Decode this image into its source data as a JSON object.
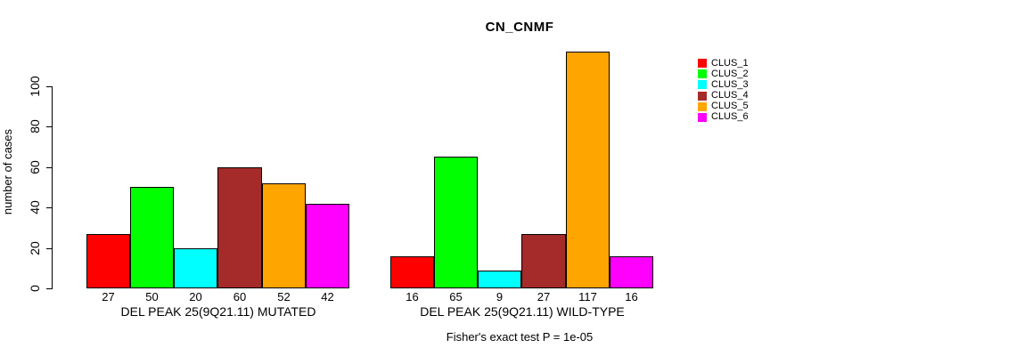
{
  "title": "CN_CNMF",
  "caption": "Fisher's exact test P = 1e-05",
  "chart_data": {
    "type": "bar",
    "title": "CN_CNMF",
    "xlabel": "",
    "ylabel": "number of cases",
    "categories": [
      "DEL PEAK 25(9Q21.11) MUTATED",
      "DEL PEAK 25(9Q21.11) WILD-TYPE"
    ],
    "series": [
      {
        "name": "CLUS_1",
        "color": "#FF0000",
        "values": [
          27,
          16
        ]
      },
      {
        "name": "CLUS_2",
        "color": "#00FF00",
        "values": [
          50,
          65
        ]
      },
      {
        "name": "CLUS_3",
        "color": "#00FFFF",
        "values": [
          20,
          9
        ]
      },
      {
        "name": "CLUS_4",
        "color": "#A52A2A",
        "values": [
          60,
          27
        ]
      },
      {
        "name": "CLUS_5",
        "color": "#FFA500",
        "values": [
          52,
          117
        ]
      },
      {
        "name": "CLUS_6",
        "color": "#FF00FF",
        "values": [
          42,
          16
        ]
      }
    ],
    "bar_value_labels": {
      "DEL PEAK 25(9Q21.11) MUTATED": [
        27,
        50,
        20,
        60,
        52,
        42
      ],
      "DEL PEAK 25(9Q21.11) WILD-TYPE": [
        16,
        65,
        9,
        27,
        117,
        16
      ]
    },
    "yticks": [
      0,
      20,
      40,
      60,
      80,
      100
    ],
    "ylim": [
      0,
      117
    ],
    "grid": false,
    "annotation": "Fisher's exact test P = 1e-05",
    "legend": {
      "position": "right",
      "entries": [
        "CLUS_1",
        "CLUS_2",
        "CLUS_3",
        "CLUS_4",
        "CLUS_5",
        "CLUS_6"
      ]
    }
  }
}
